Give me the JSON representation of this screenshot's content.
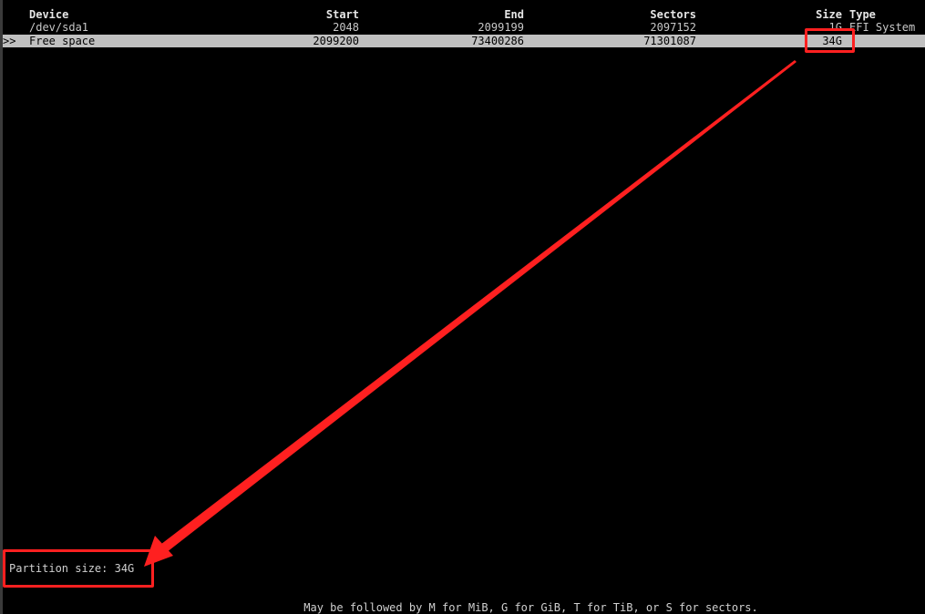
{
  "table": {
    "headers": {
      "device": "Device",
      "start": "Start",
      "end": "End",
      "sectors": "Sectors",
      "size": "Size",
      "type": "Type"
    },
    "rows": [
      {
        "selector": "",
        "device": "/dev/sda1",
        "start": "2048",
        "end": "2099199",
        "sectors": "2097152",
        "size": "1G",
        "type": "EFI System"
      },
      {
        "selector": ">>",
        "device": "Free space",
        "start": "2099200",
        "end": "73400286",
        "sectors": "71301087",
        "size": "34G",
        "type": ""
      }
    ]
  },
  "prompt": {
    "label": "Partition size: ",
    "value": "34G"
  },
  "hint": "May be followed by M for MiB, G for GiB, T for TiB, or S for sectors.",
  "colors": {
    "background": "#000000",
    "selected_row": "#c0c0c0",
    "annotation": "#ff2020"
  }
}
